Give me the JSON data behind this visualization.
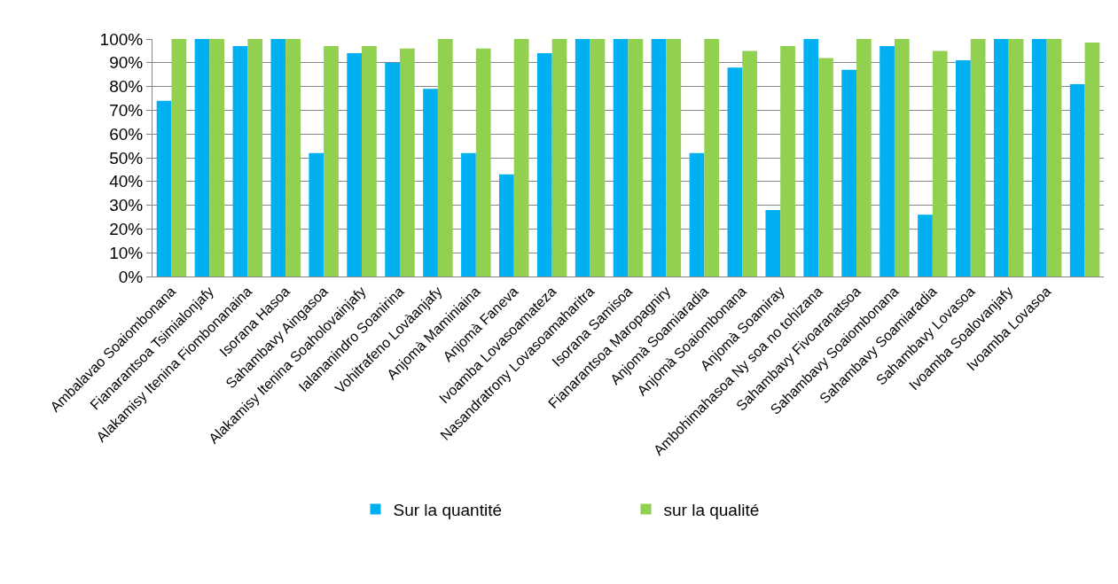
{
  "chart_data": {
    "type": "bar",
    "categories": [
      "Ambalavao Soaiombonana",
      "Fianarantsoa Tsimialonjafy",
      "Alakamisy Itenina Fiombonanaina",
      "Isorana Hasoa",
      "Sahambavy Aingasoa",
      "Alakamisy Itenina Soaholovainjafy",
      "Ialananindro Soanirina",
      "Vohitrafeno Lovàanjafy",
      "Anjomà Maminiaina",
      "Anjomà Faneva",
      "Ivoamba Lovasoamateza",
      "Nasandratrony Lovasoamaharitra",
      "Isorana Samisoa",
      "Fianarantsoa Maropagniry",
      "Anjomà Soamiaradia",
      "Anjomà Soaiombonana",
      "Anjomà Soamiray",
      "Ambohimahasoa Ny soa no tohizana",
      "Sahambavy Fivoaranatsoa",
      "Sahambavy Soaiombonana",
      "Sahambavy Soamiaradia",
      "Sahambavy Lovasoa",
      "Ivoamba Soalovanjafy",
      "Ivoamba Lovasoa",
      null
    ],
    "series": [
      {
        "name": "Sur la quantité",
        "color": "#00b0f0",
        "values": [
          74,
          100,
          97,
          100,
          52,
          94,
          90,
          79,
          52,
          43,
          94,
          100,
          100,
          100,
          52,
          88,
          28,
          100,
          87,
          97,
          26,
          91,
          100,
          100,
          81
        ]
      },
      {
        "name": "sur la qualité",
        "color": "#92d050",
        "values": [
          100,
          100,
          100,
          100,
          97,
          97,
          96,
          100,
          96,
          100,
          100,
          100,
          100,
          100,
          100,
          95,
          97,
          92,
          100,
          100,
          95,
          100,
          100,
          100,
          98.5
        ]
      }
    ],
    "ylim": [
      0,
      100
    ],
    "yticks": [
      {
        "value": 0,
        "label": "0%"
      },
      {
        "value": 10,
        "label": "10%"
      },
      {
        "value": 20,
        "label": "20%"
      },
      {
        "value": 30,
        "label": "30%"
      },
      {
        "value": 40,
        "label": "40%"
      },
      {
        "value": 50,
        "label": "50%"
      },
      {
        "value": 60,
        "label": "60%"
      },
      {
        "value": 70,
        "label": "70%"
      },
      {
        "value": 80,
        "label": "80%"
      },
      {
        "value": 90,
        "label": "90%"
      },
      {
        "value": 100,
        "label": "100%"
      }
    ],
    "grid": "y",
    "legend": "bottom"
  }
}
